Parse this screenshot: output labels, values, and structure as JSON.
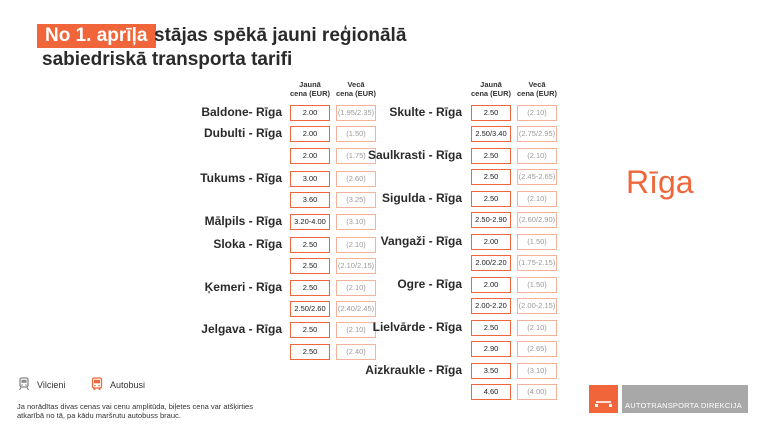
{
  "title": {
    "badge": "No 1. aprīļa",
    "line1": "stājas spēkā jauni reģionālā",
    "line2": "sabiedriskā transporta tarifi"
  },
  "columns": {
    "new_l1": "Jaunā",
    "new_l2": "cena (EUR)",
    "old_l1": "Vecā",
    "old_l2": "cena (EUR)"
  },
  "left_routes": [
    {
      "name": "Baldone- Rīga",
      "rows": [
        {
          "new": "2.00",
          "old": "(1.95/2.35)"
        }
      ]
    },
    {
      "name": "Dubulti - Rīga",
      "rows": [
        {
          "new": "2.00",
          "old": "(1.50)"
        },
        {
          "new": "2.00",
          "old": "(1.75)"
        }
      ]
    },
    {
      "name": "Tukums - Rīga",
      "rows": [
        {
          "new": "3.00",
          "old": "(2.60)"
        },
        {
          "new": "3.60",
          "old": "(3.25)"
        }
      ]
    },
    {
      "name": "Mālpils - Rīga",
      "rows": [
        {
          "new": "3.20-4.00",
          "old": "(3.10)"
        }
      ]
    },
    {
      "name": "Sloka - Rīga",
      "rows": [
        {
          "new": "2.50",
          "old": "(2.10)"
        },
        {
          "new": "2.50",
          "old": "(2.10/2.15)"
        }
      ]
    },
    {
      "name": "Ķemeri - Rīga",
      "rows": [
        {
          "new": "2.50",
          "old": "(2.10)"
        },
        {
          "new": "2.50/2.60",
          "old": "(2.40/2.45)"
        }
      ]
    },
    {
      "name": "Jelgava - Rīga",
      "rows": [
        {
          "new": "2.50",
          "old": "(2.10)"
        },
        {
          "new": "2.50",
          "old": "(2.40)"
        }
      ]
    }
  ],
  "right_routes": [
    {
      "name": "Skulte - Rīga",
      "rows": [
        {
          "new": "2.50",
          "old": "(2.10)"
        },
        {
          "new": "2.50/3.40",
          "old": "(2.75/2.95)"
        }
      ]
    },
    {
      "name": "Saulkrasti - Rīga",
      "rows": [
        {
          "new": "2.50",
          "old": "(2.10)"
        },
        {
          "new": "2.50",
          "old": "(2.45-2.65)"
        }
      ]
    },
    {
      "name": "Sigulda - Rīga",
      "rows": [
        {
          "new": "2.50",
          "old": "(2.10)"
        },
        {
          "new": "2.50-2.90",
          "old": "(2.60/2.90)"
        }
      ]
    },
    {
      "name": "Vangaži - Rīga",
      "rows": [
        {
          "new": "2.00",
          "old": "(1.50)"
        },
        {
          "new": "2.00/2.20",
          "old": "(1.75-2.15)"
        }
      ]
    },
    {
      "name": "Ogre - Rīga",
      "rows": [
        {
          "new": "2.00",
          "old": "(1.50)"
        },
        {
          "new": "2.00-2.20",
          "old": "(2.00-2.15)"
        }
      ]
    },
    {
      "name": "Lielvārde - Rīga",
      "rows": [
        {
          "new": "2.50",
          "old": "(2.10)"
        },
        {
          "new": "2.90",
          "old": "(2.65)"
        }
      ]
    },
    {
      "name": "Aizkraukle - Rīga",
      "rows": [
        {
          "new": "3.50",
          "old": "(3.10)"
        },
        {
          "new": "4.60",
          "old": "(4.00)"
        }
      ]
    }
  ],
  "city": "Rīga",
  "legend": {
    "train_label": "Vilcieni",
    "train_icon": "train-icon",
    "bus_label": "Autobusi",
    "bus_icon": "bus-icon"
  },
  "note": {
    "line1": "Ja norādītas divas cenas vai cenu amplitūda, biļetes cena var atšķirties",
    "line2": "atkarībā no tā, pa kādu maršrutu autobuss brauc."
  },
  "logo": {
    "text": "AUTOTRANSPORTA DIREKCIJA",
    "accent": "#f0663a",
    "bar_color": "#a8a8a8"
  },
  "colors": {
    "accent": "#f0663a",
    "old_border": "#f5b29a",
    "old_text": "#9a9a9a"
  }
}
